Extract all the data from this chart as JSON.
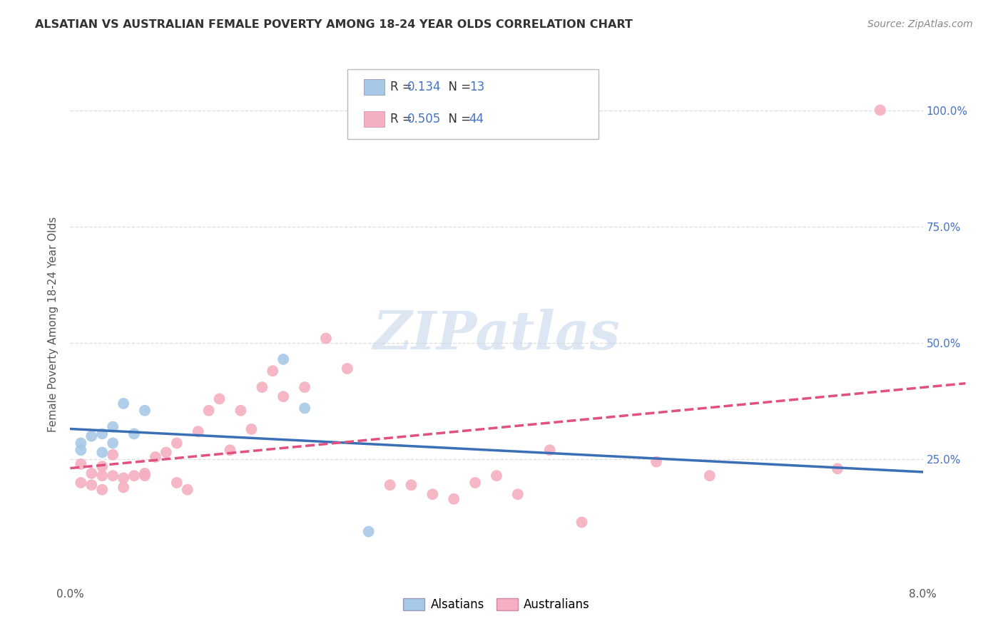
{
  "title": "ALSATIAN VS AUSTRALIAN FEMALE POVERTY AMONG 18-24 YEAR OLDS CORRELATION CHART",
  "source": "Source: ZipAtlas.com",
  "ylabel": "Female Poverty Among 18-24 Year Olds",
  "xlim": [
    0.0,
    0.08
  ],
  "ylim": [
    -0.02,
    1.1
  ],
  "xtick_labels": [
    "0.0%",
    "8.0%"
  ],
  "xtick_positions": [
    0.0,
    0.08
  ],
  "ytick_labels": [
    "25.0%",
    "50.0%",
    "75.0%",
    "100.0%"
  ],
  "ytick_positions": [
    0.25,
    0.5,
    0.75,
    1.0
  ],
  "alsatians_R": "0.134",
  "alsatians_N": "13",
  "australians_R": "0.505",
  "australians_N": "44",
  "alsatians_color": "#a8c8e8",
  "australians_color": "#f4b0c0",
  "alsatians_line_color": "#3a6fb5",
  "australians_line_color": "#e05080",
  "alsatians_line_style": "-",
  "australians_line_style": "--",
  "watermark": "ZIPatlas",
  "watermark_color": "#c5d8ec",
  "alsatians_x": [
    0.001,
    0.001,
    0.002,
    0.003,
    0.003,
    0.004,
    0.004,
    0.005,
    0.006,
    0.007,
    0.02,
    0.022,
    0.028
  ],
  "alsatians_y": [
    0.285,
    0.27,
    0.3,
    0.305,
    0.265,
    0.285,
    0.32,
    0.37,
    0.305,
    0.355,
    0.465,
    0.36,
    0.095
  ],
  "australians_x": [
    0.001,
    0.001,
    0.002,
    0.002,
    0.003,
    0.003,
    0.003,
    0.004,
    0.004,
    0.005,
    0.005,
    0.006,
    0.007,
    0.007,
    0.008,
    0.009,
    0.01,
    0.01,
    0.011,
    0.012,
    0.013,
    0.014,
    0.015,
    0.016,
    0.017,
    0.018,
    0.019,
    0.02,
    0.022,
    0.024,
    0.026,
    0.03,
    0.032,
    0.034,
    0.036,
    0.038,
    0.04,
    0.042,
    0.045,
    0.048,
    0.055,
    0.06,
    0.072,
    0.076
  ],
  "australians_y": [
    0.24,
    0.2,
    0.22,
    0.195,
    0.215,
    0.185,
    0.235,
    0.215,
    0.26,
    0.19,
    0.21,
    0.215,
    0.215,
    0.22,
    0.255,
    0.265,
    0.2,
    0.285,
    0.185,
    0.31,
    0.355,
    0.38,
    0.27,
    0.355,
    0.315,
    0.405,
    0.44,
    0.385,
    0.405,
    0.51,
    0.445,
    0.195,
    0.195,
    0.175,
    0.165,
    0.2,
    0.215,
    0.175,
    0.27,
    0.115,
    0.245,
    0.215,
    0.23,
    1.0
  ],
  "background_color": "#ffffff",
  "grid_color": "#dddddd",
  "legend_blue_color": "#4472c4",
  "legend_text_color": "#333333"
}
